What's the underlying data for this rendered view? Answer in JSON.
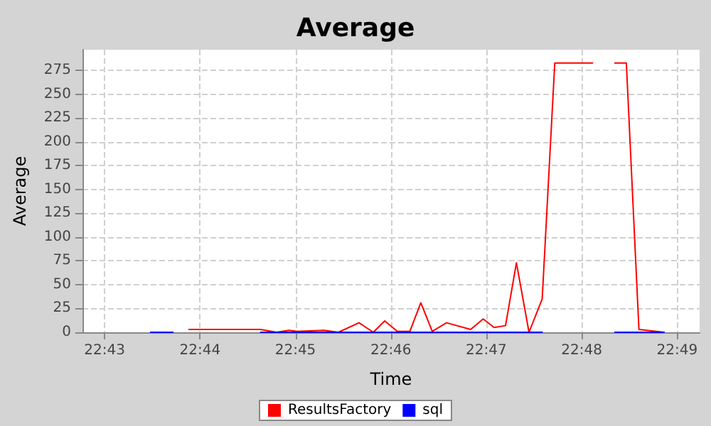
{
  "chart_data": {
    "type": "line",
    "title": "Average",
    "xlabel": "Time",
    "ylabel": "Average",
    "xlim": [
      22.7128,
      22.8206
    ],
    "xticks": [
      {
        "value": 22.71667,
        "label": "22:43"
      },
      {
        "value": 22.73333,
        "label": "22:44"
      },
      {
        "value": 22.75,
        "label": "22:45"
      },
      {
        "value": 22.76667,
        "label": "22:46"
      },
      {
        "value": 22.78333,
        "label": "22:47"
      },
      {
        "value": 22.8,
        "label": "22:48"
      },
      {
        "value": 22.81667,
        "label": "22:49"
      }
    ],
    "ylim": [
      0,
      297
    ],
    "yticks": [
      0,
      25,
      50,
      75,
      100,
      125,
      150,
      175,
      200,
      225,
      250,
      275
    ],
    "grid": true,
    "legend": "bottom",
    "marker": "none",
    "line_style": "solid",
    "series": [
      {
        "name": "ResultsFactory",
        "color": "#ff0000",
        "x": [
          22.7314,
          22.7361,
          22.7428,
          22.7439,
          22.7467,
          22.7489,
          22.7503,
          22.755,
          22.7575,
          22.7611,
          22.7636,
          22.7656,
          22.7678,
          22.77,
          22.7719,
          22.7739,
          22.7764,
          22.7806,
          22.7828,
          22.7847,
          22.7867,
          22.7886,
          22.7908,
          22.7931,
          22.7953,
          22.8019,
          22.8039,
          22.8058,
          22.8078,
          22.81,
          22.8144
        ],
        "values": [
          3,
          3,
          3,
          3,
          0,
          2,
          1,
          2,
          0,
          10,
          0,
          12,
          1,
          1,
          31,
          1,
          10,
          3,
          14,
          5,
          7,
          73,
          0,
          35,
          283,
          283,
          null,
          283,
          283,
          3,
          0
        ]
      },
      {
        "name": "sql",
        "color": "#0000ff",
        "x": [
          22.7247,
          22.7286,
          22.73,
          22.7439,
          22.7931,
          22.8,
          22.8058,
          22.8144
        ],
        "values": [
          0,
          0,
          null,
          0,
          0,
          null,
          0,
          0
        ]
      }
    ]
  }
}
